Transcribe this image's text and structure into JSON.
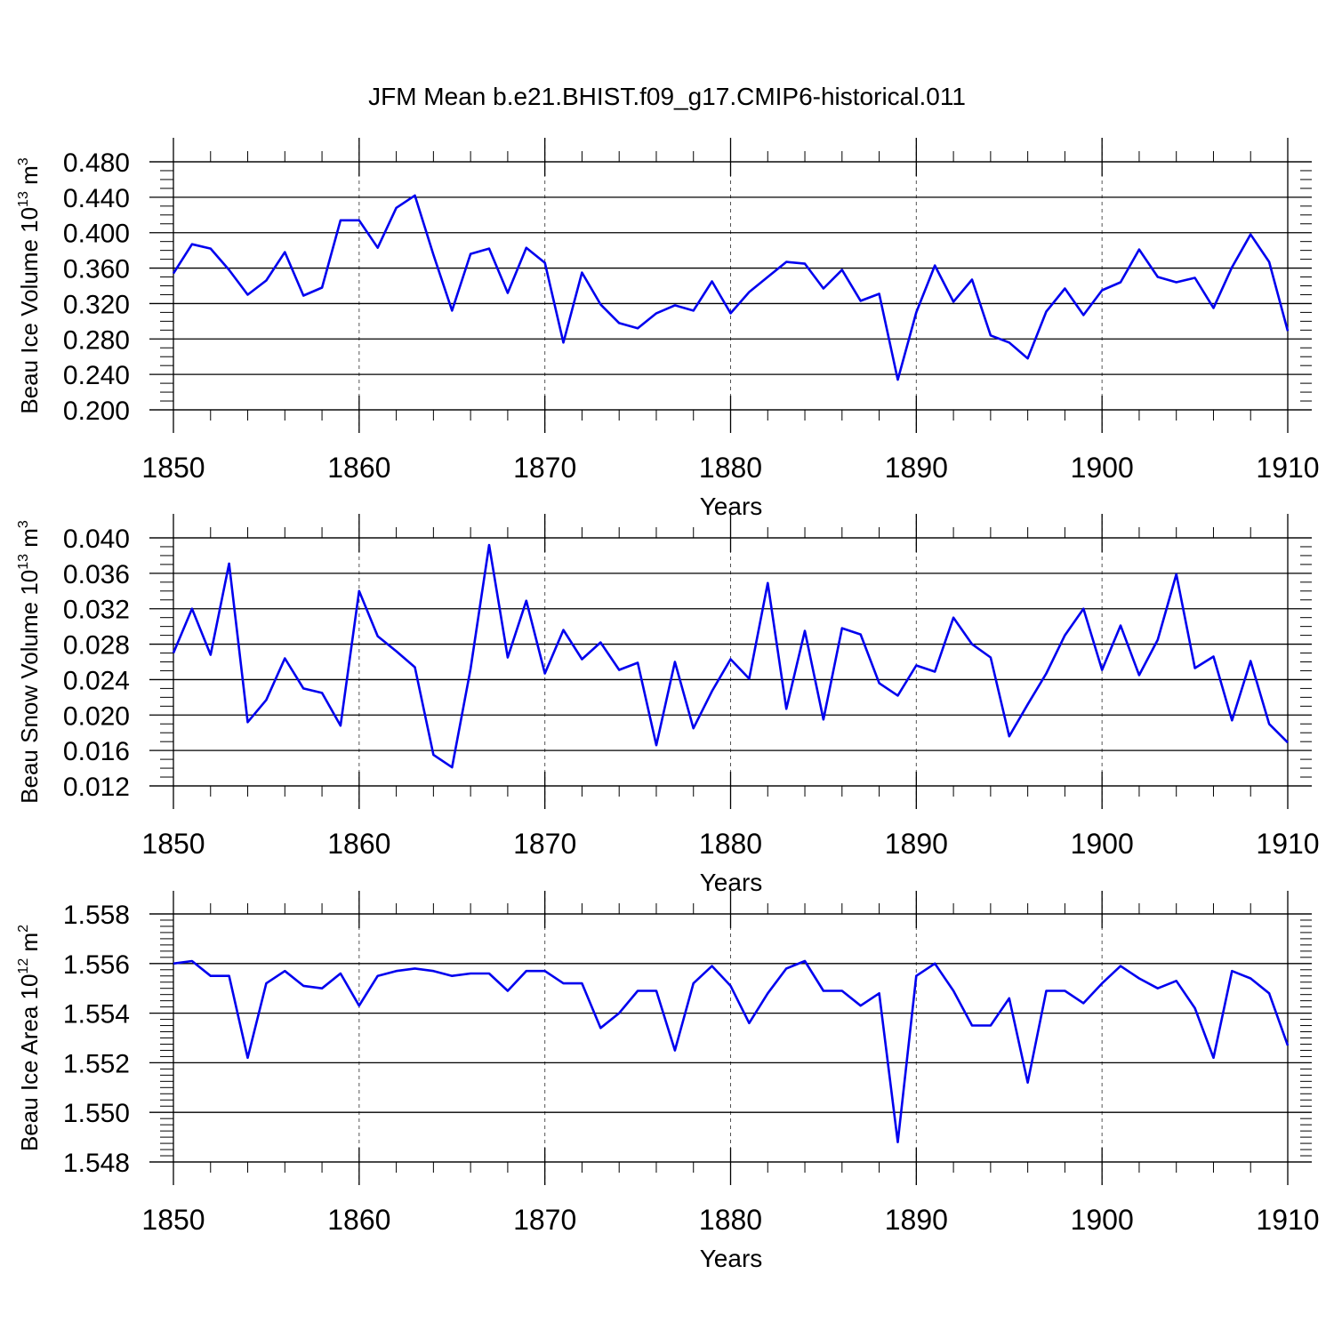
{
  "title": "JFM Mean b.e21.BHIST.f09_g17.CMIP6-historical.011",
  "line_color": "#0000ee",
  "chart_data": [
    {
      "type": "line",
      "ylabel": {
        "main": "Beau Ice Volume 10",
        "exp": "13",
        "unit": " m",
        "unit_exp": "3"
      },
      "xlabel": "Years",
      "xlim": [
        1850,
        1910
      ],
      "ylim": [
        0.2,
        0.48
      ],
      "yticks": [
        "0.200",
        "0.240",
        "0.280",
        "0.320",
        "0.360",
        "0.400",
        "0.440",
        "0.480"
      ],
      "xticks": [
        "1850",
        "1860",
        "1870",
        "1880",
        "1890",
        "1900",
        "1910"
      ],
      "x_start": 1850,
      "values": [
        0.354,
        0.387,
        0.382,
        0.358,
        0.33,
        0.346,
        0.378,
        0.329,
        0.338,
        0.414,
        0.414,
        0.383,
        0.428,
        0.442,
        0.375,
        0.312,
        0.376,
        0.382,
        0.332,
        0.383,
        0.366,
        0.276,
        0.355,
        0.319,
        0.298,
        0.292,
        0.309,
        0.318,
        0.312,
        0.345,
        0.309,
        0.333,
        0.35,
        0.367,
        0.365,
        0.337,
        0.358,
        0.323,
        0.331,
        0.234,
        0.31,
        0.363,
        0.322,
        0.347,
        0.284,
        0.276,
        0.258,
        0.311,
        0.337,
        0.307,
        0.335,
        0.344,
        0.381,
        0.35,
        0.344,
        0.349,
        0.315,
        0.361,
        0.398,
        0.367,
        0.289
      ]
    },
    {
      "type": "line",
      "ylabel": {
        "main": "Beau Snow Volume 10",
        "exp": "13",
        "unit": " m",
        "unit_exp": "3"
      },
      "xlabel": "Years",
      "xlim": [
        1850,
        1910
      ],
      "ylim": [
        0.012,
        0.04
      ],
      "yticks": [
        "0.012",
        "0.016",
        "0.020",
        "0.024",
        "0.028",
        "0.032",
        "0.036",
        "0.040"
      ],
      "xticks": [
        "1850",
        "1860",
        "1870",
        "1880",
        "1890",
        "1900",
        "1910"
      ],
      "x_start": 1850,
      "values": [
        0.027,
        0.032,
        0.0268,
        0.0371,
        0.0192,
        0.0217,
        0.0264,
        0.023,
        0.0225,
        0.0188,
        0.034,
        0.0289,
        0.0272,
        0.0254,
        0.0155,
        0.0141,
        0.0252,
        0.0392,
        0.0265,
        0.0329,
        0.0247,
        0.0296,
        0.0263,
        0.0282,
        0.0251,
        0.0259,
        0.0166,
        0.026,
        0.0185,
        0.0227,
        0.0263,
        0.0241,
        0.0349,
        0.0207,
        0.0295,
        0.0195,
        0.0298,
        0.0291,
        0.0236,
        0.0222,
        0.0256,
        0.0249,
        0.031,
        0.028,
        0.0265,
        0.0176,
        0.0212,
        0.0247,
        0.029,
        0.032,
        0.0251,
        0.0301,
        0.0245,
        0.0285,
        0.0359,
        0.0253,
        0.0266,
        0.0194,
        0.0261,
        0.019,
        0.0169
      ]
    },
    {
      "type": "line",
      "ylabel": {
        "main": "Beau Ice Area 10",
        "exp": "12",
        "unit": " m",
        "unit_exp": "2"
      },
      "xlabel": "Years",
      "xlim": [
        1850,
        1910
      ],
      "ylim": [
        1.548,
        1.558
      ],
      "yticks": [
        "1.548",
        "1.550",
        "1.552",
        "1.554",
        "1.556",
        "1.558"
      ],
      "xticks": [
        "1850",
        "1860",
        "1870",
        "1880",
        "1890",
        "1900",
        "1910"
      ],
      "x_start": 1850,
      "values": [
        1.556,
        1.5561,
        1.5555,
        1.5555,
        1.5522,
        1.5552,
        1.5557,
        1.5551,
        1.555,
        1.5556,
        1.5543,
        1.5555,
        1.5557,
        1.5558,
        1.5557,
        1.5555,
        1.5556,
        1.5556,
        1.5549,
        1.5557,
        1.5557,
        1.5552,
        1.5552,
        1.5534,
        1.554,
        1.5549,
        1.5549,
        1.5525,
        1.5552,
        1.5559,
        1.5551,
        1.5536,
        1.5548,
        1.5558,
        1.5561,
        1.5549,
        1.5549,
        1.5543,
        1.5548,
        1.5488,
        1.5555,
        1.556,
        1.5549,
        1.5535,
        1.5535,
        1.5546,
        1.5512,
        1.5549,
        1.5549,
        1.5544,
        1.5552,
        1.5559,
        1.5554,
        1.555,
        1.5553,
        1.5542,
        1.5522,
        1.5557,
        1.5554,
        1.5548,
        1.5527
      ]
    }
  ]
}
